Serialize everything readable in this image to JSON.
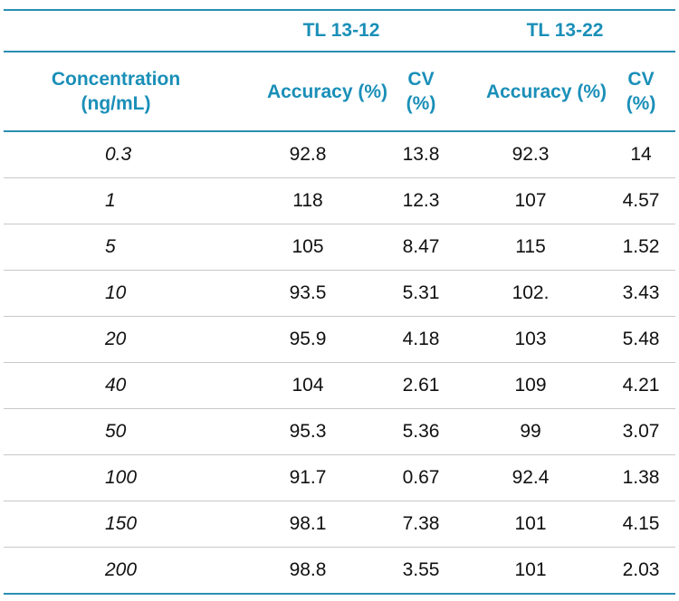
{
  "table": {
    "groups": [
      "TL 13-12",
      "TL 13-22"
    ],
    "headers": {
      "concentration_line1": "Concentration",
      "concentration_line2": "(ng/mL)",
      "accuracy": "Accuracy (%)",
      "cv_line1": "CV",
      "cv_line2": "(%)"
    },
    "rows": [
      {
        "conc": "0.3",
        "acc1": "92.8",
        "cv1": "13.8",
        "acc2": "92.3",
        "cv2": "14"
      },
      {
        "conc": "1",
        "acc1": "118",
        "cv1": "12.3",
        "acc2": "107",
        "cv2": "4.57"
      },
      {
        "conc": "5",
        "acc1": "105",
        "cv1": "8.47",
        "acc2": "115",
        "cv2": "1.52"
      },
      {
        "conc": "10",
        "acc1": "93.5",
        "cv1": "5.31",
        "acc2": "102.",
        "cv2": "3.43"
      },
      {
        "conc": "20",
        "acc1": "95.9",
        "cv1": "4.18",
        "acc2": "103",
        "cv2": "5.48"
      },
      {
        "conc": "40",
        "acc1": "104",
        "cv1": "2.61",
        "acc2": "109",
        "cv2": "4.21"
      },
      {
        "conc": "50",
        "acc1": "95.3",
        "cv1": "5.36",
        "acc2": "99",
        "cv2": "3.07"
      },
      {
        "conc": "100",
        "acc1": "91.7",
        "cv1": "0.67",
        "acc2": "92.4",
        "cv2": "1.38"
      },
      {
        "conc": "150",
        "acc1": "98.1",
        "cv1": "7.38",
        "acc2": "101",
        "cv2": "4.15"
      },
      {
        "conc": "200",
        "acc1": "98.8",
        "cv1": "3.55",
        "acc2": "101",
        "cv2": "2.03"
      }
    ],
    "colors": {
      "header_text": "#1a8fb8",
      "rule": "#2a8fb0",
      "row_divider": "#c8c8c8",
      "body_text": "#111111"
    }
  }
}
